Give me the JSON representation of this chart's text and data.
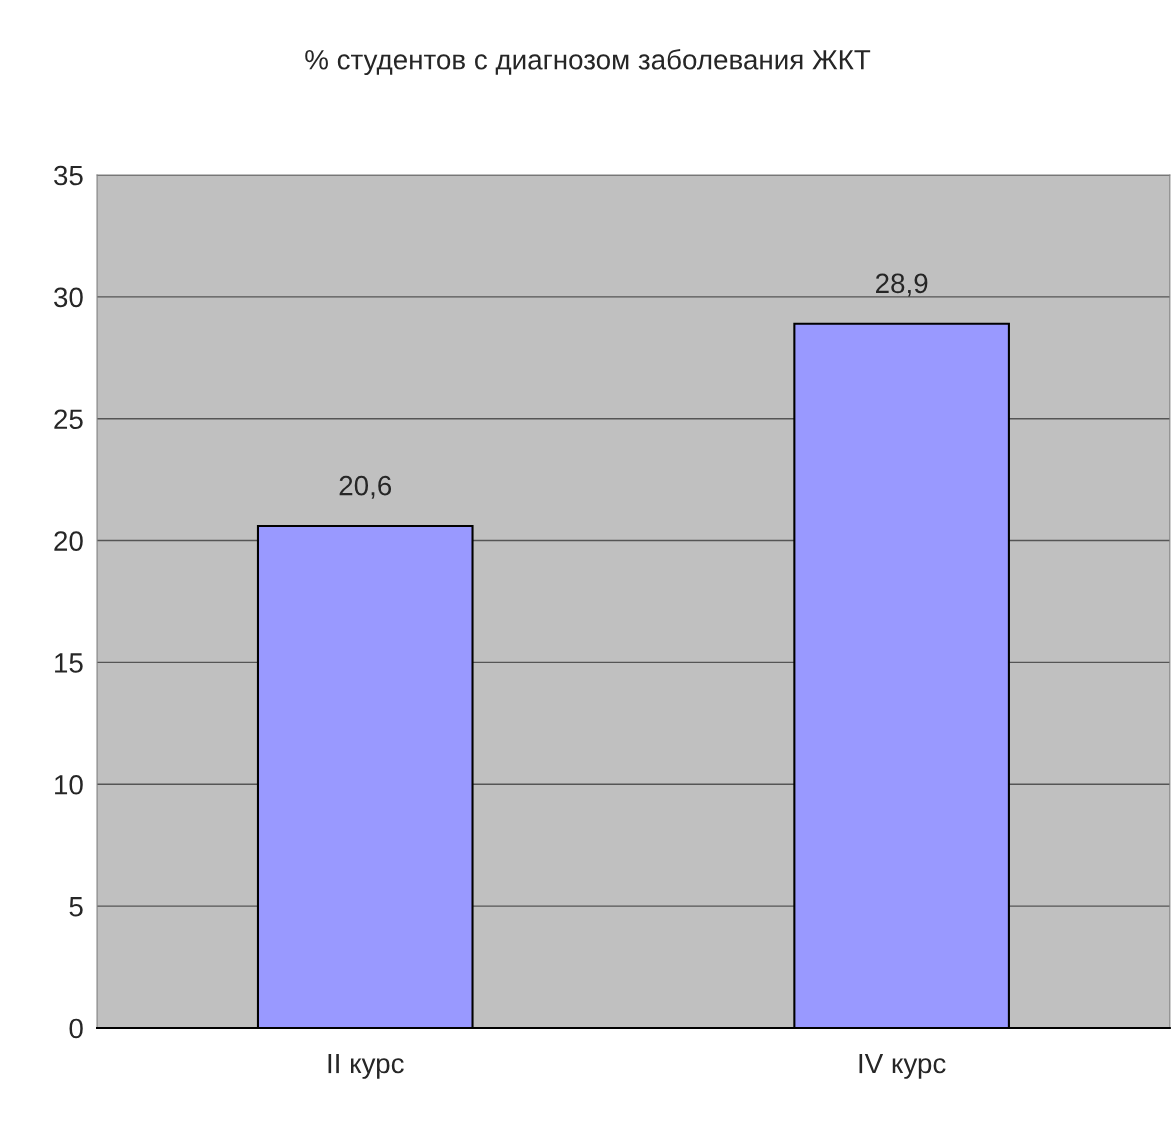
{
  "chart_data": {
    "type": "bar",
    "title": "% студентов с диагнозом заболевания ЖКТ",
    "categories": [
      "II курс",
      "IV курс"
    ],
    "values": [
      20.6,
      28.9
    ],
    "value_labels": [
      "20,6",
      "28,9"
    ],
    "color": "#9999ff",
    "ylim": [
      0,
      35
    ],
    "yticks": [
      0,
      5,
      10,
      15,
      20,
      25,
      30,
      35
    ],
    "grid": "y",
    "legend": false
  }
}
